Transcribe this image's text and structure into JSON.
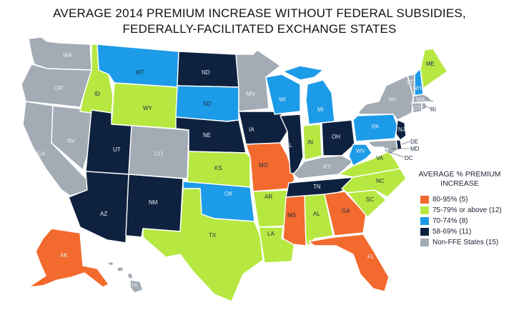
{
  "title": {
    "line1": "AVERAGE 2014 PREMIUM INCREASE WITHOUT FEDERAL SUBSIDIES,",
    "line2": "FEDERALLY-FACILITATED EXCHANGE  STATES"
  },
  "legend": {
    "title_line1": "AVERAGE % PREMIUM",
    "title_line2": "INCREASE",
    "items": [
      {
        "key": "c80",
        "label": "80-95% (5)",
        "color": "#f26a2e"
      },
      {
        "key": "c75",
        "label": "75-79% or above (12)",
        "color": "#b6e841"
      },
      {
        "key": "c70",
        "label": "70-74% (8)",
        "color": "#1c9be8"
      },
      {
        "key": "c58",
        "label": "58-69% (11)",
        "color": "#0e2240"
      },
      {
        "key": "non",
        "label": "Non-FFE States (15)",
        "color": "#a3abb5"
      }
    ]
  },
  "states": {
    "WA": {
      "label": "WA",
      "category": "non"
    },
    "OR": {
      "label": "OR",
      "category": "non"
    },
    "CA": {
      "label": "CA",
      "category": "non"
    },
    "NV": {
      "label": "NV",
      "category": "non"
    },
    "ID": {
      "label": "ID",
      "category": "c75"
    },
    "MT": {
      "label": "MT",
      "category": "c70"
    },
    "WY": {
      "label": "WY",
      "category": "c75"
    },
    "UT": {
      "label": "UT",
      "category": "c58"
    },
    "CO": {
      "label": "CO",
      "category": "non"
    },
    "AZ": {
      "label": "AZ",
      "category": "c58"
    },
    "NM": {
      "label": "NM",
      "category": "c58"
    },
    "ND": {
      "label": "ND",
      "category": "c58"
    },
    "SD": {
      "label": "SD",
      "category": "c70"
    },
    "NE": {
      "label": "NE",
      "category": "c58"
    },
    "KS": {
      "label": "KS",
      "category": "c75"
    },
    "OK": {
      "label": "OK",
      "category": "c70"
    },
    "TX": {
      "label": "TX",
      "category": "c75"
    },
    "MN": {
      "label": "MN",
      "category": "non"
    },
    "IA": {
      "label": "IA",
      "category": "c58"
    },
    "MO": {
      "label": "MO",
      "category": "c80"
    },
    "AR": {
      "label": "AR",
      "category": "c75"
    },
    "LA": {
      "label": "LA",
      "category": "c75"
    },
    "WI": {
      "label": "WI",
      "category": "c70"
    },
    "IL": {
      "label": "IL",
      "category": "c58"
    },
    "MI": {
      "label": "MI",
      "category": "c70"
    },
    "IN": {
      "label": "IN",
      "category": "c75"
    },
    "OH": {
      "label": "OH",
      "category": "c58"
    },
    "KY": {
      "label": "KY",
      "category": "non"
    },
    "TN": {
      "label": "TN",
      "category": "c58"
    },
    "MS": {
      "label": "MS",
      "category": "c80"
    },
    "AL": {
      "label": "AL",
      "category": "c75"
    },
    "GA": {
      "label": "GA",
      "category": "c80"
    },
    "FL": {
      "label": "FL",
      "category": "c80"
    },
    "SC": {
      "label": "SC",
      "category": "c75"
    },
    "NC": {
      "label": "NC",
      "category": "c75"
    },
    "VA": {
      "label": "VA",
      "category": "c75"
    },
    "WV": {
      "label": "WV",
      "category": "c70"
    },
    "PA": {
      "label": "PA",
      "category": "c70"
    },
    "NY": {
      "label": "NY",
      "category": "non"
    },
    "NJ": {
      "label": "NJ",
      "category": "c58"
    },
    "DE": {
      "label": "DE",
      "category": "c58"
    },
    "MD": {
      "label": "MD",
      "category": "non"
    },
    "DC": {
      "label": "DC",
      "category": "non"
    },
    "VT": {
      "label": "VT",
      "category": "non"
    },
    "NH": {
      "label": "NH",
      "category": "c70"
    },
    "ME": {
      "label": "ME",
      "category": "c75"
    },
    "MA": {
      "label": "MA",
      "category": "non"
    },
    "CT": {
      "label": "CT",
      "category": "non"
    },
    "RI": {
      "label": "RI",
      "category": "non"
    },
    "AK": {
      "label": "AK",
      "category": "c80"
    },
    "HI": {
      "label": "HI",
      "category": "non"
    }
  }
}
